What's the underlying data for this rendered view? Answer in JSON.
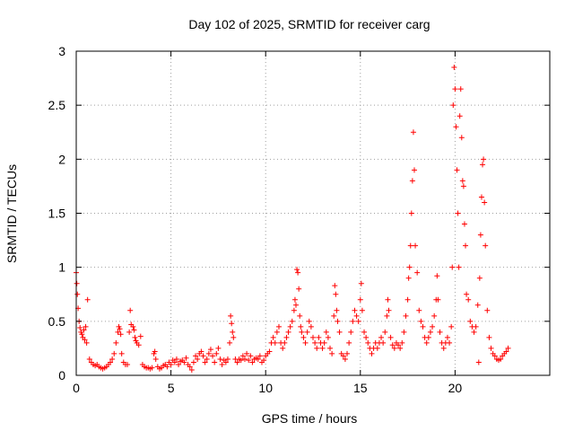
{
  "chart_data": {
    "type": "scatter",
    "title": "Day 102 of 2025, SRMTID for receiver carg",
    "xlabel": "GPS time / hours",
    "ylabel": "SRMTID / TECUs",
    "xlim": [
      0,
      25
    ],
    "ylim": [
      0,
      3
    ],
    "xticks": [
      0,
      5,
      10,
      15,
      20
    ],
    "xtick_labels": [
      "0",
      "5",
      "10",
      "15",
      "20"
    ],
    "yticks": [
      0,
      0.5,
      1,
      1.5,
      2,
      2.5,
      3
    ],
    "ytick_labels": [
      "0",
      "0.5",
      "1",
      "1.5",
      "2",
      "2.5",
      "3"
    ],
    "grid": true,
    "marker": "+",
    "color": "#ff0000",
    "series": [
      {
        "name": "SRMTID",
        "points": [
          [
            0.0,
            0.95
          ],
          [
            0.03,
            0.85
          ],
          [
            0.06,
            0.75
          ],
          [
            0.1,
            0.62
          ],
          [
            0.15,
            0.5
          ],
          [
            0.2,
            0.44
          ],
          [
            0.25,
            0.4
          ],
          [
            0.3,
            0.38
          ],
          [
            0.35,
            0.35
          ],
          [
            0.4,
            0.42
          ],
          [
            0.45,
            0.33
          ],
          [
            0.5,
            0.45
          ],
          [
            0.55,
            0.3
          ],
          [
            0.6,
            0.7
          ],
          [
            0.7,
            0.15
          ],
          [
            0.8,
            0.12
          ],
          [
            0.9,
            0.1
          ],
          [
            1.0,
            0.09
          ],
          [
            1.1,
            0.1
          ],
          [
            1.2,
            0.08
          ],
          [
            1.3,
            0.07
          ],
          [
            1.4,
            0.06
          ],
          [
            1.5,
            0.07
          ],
          [
            1.6,
            0.08
          ],
          [
            1.7,
            0.1
          ],
          [
            1.8,
            0.12
          ],
          [
            1.9,
            0.15
          ],
          [
            2.0,
            0.2
          ],
          [
            2.1,
            0.3
          ],
          [
            2.2,
            0.4
          ],
          [
            2.25,
            0.45
          ],
          [
            2.3,
            0.43
          ],
          [
            2.35,
            0.38
          ],
          [
            2.4,
            0.2
          ],
          [
            2.5,
            0.12
          ],
          [
            2.6,
            0.1
          ],
          [
            2.7,
            0.1
          ],
          [
            2.8,
            0.4
          ],
          [
            2.85,
            0.6
          ],
          [
            2.9,
            0.47
          ],
          [
            3.0,
            0.45
          ],
          [
            3.05,
            0.42
          ],
          [
            3.1,
            0.35
          ],
          [
            3.15,
            0.32
          ],
          [
            3.2,
            0.3
          ],
          [
            3.3,
            0.28
          ],
          [
            3.4,
            0.36
          ],
          [
            3.5,
            0.1
          ],
          [
            3.6,
            0.08
          ],
          [
            3.7,
            0.07
          ],
          [
            3.8,
            0.07
          ],
          [
            3.9,
            0.06
          ],
          [
            4.0,
            0.07
          ],
          [
            4.1,
            0.2
          ],
          [
            4.15,
            0.22
          ],
          [
            4.2,
            0.15
          ],
          [
            4.3,
            0.08
          ],
          [
            4.4,
            0.06
          ],
          [
            4.5,
            0.07
          ],
          [
            4.6,
            0.09
          ],
          [
            4.7,
            0.1
          ],
          [
            4.8,
            0.08
          ],
          [
            4.9,
            0.12
          ],
          [
            5.0,
            0.1
          ],
          [
            5.1,
            0.14
          ],
          [
            5.2,
            0.12
          ],
          [
            5.3,
            0.15
          ],
          [
            5.4,
            0.1
          ],
          [
            5.5,
            0.13
          ],
          [
            5.6,
            0.14
          ],
          [
            5.7,
            0.12
          ],
          [
            5.8,
            0.16
          ],
          [
            5.9,
            0.1
          ],
          [
            6.0,
            0.08
          ],
          [
            6.1,
            0.05
          ],
          [
            6.2,
            0.12
          ],
          [
            6.3,
            0.18
          ],
          [
            6.4,
            0.15
          ],
          [
            6.5,
            0.2
          ],
          [
            6.6,
            0.22
          ],
          [
            6.7,
            0.18
          ],
          [
            6.8,
            0.12
          ],
          [
            6.9,
            0.15
          ],
          [
            7.0,
            0.2
          ],
          [
            7.1,
            0.24
          ],
          [
            7.2,
            0.18
          ],
          [
            7.3,
            0.12
          ],
          [
            7.4,
            0.2
          ],
          [
            7.5,
            0.25
          ],
          [
            7.6,
            0.15
          ],
          [
            7.7,
            0.1
          ],
          [
            7.8,
            0.14
          ],
          [
            7.9,
            0.12
          ],
          [
            8.0,
            0.15
          ],
          [
            8.1,
            0.3
          ],
          [
            8.15,
            0.55
          ],
          [
            8.2,
            0.48
          ],
          [
            8.25,
            0.4
          ],
          [
            8.3,
            0.35
          ],
          [
            8.4,
            0.15
          ],
          [
            8.5,
            0.12
          ],
          [
            8.6,
            0.15
          ],
          [
            8.7,
            0.14
          ],
          [
            8.8,
            0.18
          ],
          [
            8.9,
            0.15
          ],
          [
            9.0,
            0.2
          ],
          [
            9.1,
            0.14
          ],
          [
            9.2,
            0.18
          ],
          [
            9.3,
            0.12
          ],
          [
            9.4,
            0.15
          ],
          [
            9.5,
            0.16
          ],
          [
            9.6,
            0.15
          ],
          [
            9.7,
            0.18
          ],
          [
            9.8,
            0.12
          ],
          [
            9.9,
            0.14
          ],
          [
            10.0,
            0.18
          ],
          [
            10.1,
            0.2
          ],
          [
            10.2,
            0.22
          ],
          [
            10.3,
            0.3
          ],
          [
            10.4,
            0.35
          ],
          [
            10.5,
            0.3
          ],
          [
            10.6,
            0.4
          ],
          [
            10.7,
            0.45
          ],
          [
            10.8,
            0.3
          ],
          [
            10.9,
            0.25
          ],
          [
            11.0,
            0.3
          ],
          [
            11.1,
            0.35
          ],
          [
            11.2,
            0.4
          ],
          [
            11.3,
            0.45
          ],
          [
            11.4,
            0.5
          ],
          [
            11.5,
            0.6
          ],
          [
            11.55,
            0.7
          ],
          [
            11.6,
            0.65
          ],
          [
            11.65,
            0.98
          ],
          [
            11.7,
            0.95
          ],
          [
            11.75,
            0.8
          ],
          [
            11.8,
            0.55
          ],
          [
            11.85,
            0.45
          ],
          [
            11.9,
            0.4
          ],
          [
            12.0,
            0.35
          ],
          [
            12.1,
            0.3
          ],
          [
            12.2,
            0.4
          ],
          [
            12.3,
            0.5
          ],
          [
            12.4,
            0.45
          ],
          [
            12.5,
            0.35
          ],
          [
            12.6,
            0.3
          ],
          [
            12.7,
            0.25
          ],
          [
            12.8,
            0.35
          ],
          [
            12.9,
            0.3
          ],
          [
            13.0,
            0.25
          ],
          [
            13.1,
            0.3
          ],
          [
            13.2,
            0.4
          ],
          [
            13.3,
            0.35
          ],
          [
            13.4,
            0.25
          ],
          [
            13.5,
            0.2
          ],
          [
            13.6,
            0.55
          ],
          [
            13.65,
            0.83
          ],
          [
            13.7,
            0.75
          ],
          [
            13.75,
            0.6
          ],
          [
            13.8,
            0.5
          ],
          [
            13.9,
            0.4
          ],
          [
            14.0,
            0.2
          ],
          [
            14.1,
            0.18
          ],
          [
            14.2,
            0.15
          ],
          [
            14.3,
            0.2
          ],
          [
            14.4,
            0.3
          ],
          [
            14.5,
            0.4
          ],
          [
            14.6,
            0.5
          ],
          [
            14.7,
            0.6
          ],
          [
            14.8,
            0.55
          ],
          [
            14.9,
            0.5
          ],
          [
            15.0,
            0.7
          ],
          [
            15.05,
            0.85
          ],
          [
            15.1,
            0.6
          ],
          [
            15.2,
            0.4
          ],
          [
            15.3,
            0.35
          ],
          [
            15.4,
            0.3
          ],
          [
            15.5,
            0.25
          ],
          [
            15.6,
            0.2
          ],
          [
            15.7,
            0.25
          ],
          [
            15.8,
            0.3
          ],
          [
            15.9,
            0.25
          ],
          [
            16.0,
            0.3
          ],
          [
            16.1,
            0.35
          ],
          [
            16.2,
            0.3
          ],
          [
            16.3,
            0.4
          ],
          [
            16.4,
            0.55
          ],
          [
            16.45,
            0.7
          ],
          [
            16.5,
            0.6
          ],
          [
            16.6,
            0.35
          ],
          [
            16.7,
            0.28
          ],
          [
            16.8,
            0.25
          ],
          [
            16.9,
            0.3
          ],
          [
            17.0,
            0.28
          ],
          [
            17.1,
            0.25
          ],
          [
            17.2,
            0.3
          ],
          [
            17.3,
            0.4
          ],
          [
            17.4,
            0.55
          ],
          [
            17.5,
            0.7
          ],
          [
            17.55,
            0.9
          ],
          [
            17.6,
            1.0
          ],
          [
            17.65,
            1.2
          ],
          [
            17.7,
            1.5
          ],
          [
            17.75,
            1.8
          ],
          [
            17.8,
            2.25
          ],
          [
            17.85,
            1.9
          ],
          [
            17.9,
            1.2
          ],
          [
            18.0,
            0.95
          ],
          [
            18.1,
            0.6
          ],
          [
            18.2,
            0.5
          ],
          [
            18.3,
            0.45
          ],
          [
            18.4,
            0.35
          ],
          [
            18.5,
            0.3
          ],
          [
            18.6,
            0.35
          ],
          [
            18.7,
            0.4
          ],
          [
            18.8,
            0.45
          ],
          [
            18.9,
            0.55
          ],
          [
            19.0,
            0.7
          ],
          [
            19.05,
            0.92
          ],
          [
            19.1,
            0.7
          ],
          [
            19.2,
            0.4
          ],
          [
            19.3,
            0.3
          ],
          [
            19.4,
            0.25
          ],
          [
            19.5,
            0.3
          ],
          [
            19.6,
            0.35
          ],
          [
            19.7,
            0.3
          ],
          [
            19.8,
            0.45
          ],
          [
            19.85,
            1.0
          ],
          [
            19.9,
            2.5
          ],
          [
            19.95,
            2.85
          ],
          [
            20.0,
            2.65
          ],
          [
            20.05,
            2.3
          ],
          [
            20.1,
            1.9
          ],
          [
            20.15,
            1.5
          ],
          [
            20.2,
            1.0
          ],
          [
            20.25,
            2.4
          ],
          [
            20.3,
            2.65
          ],
          [
            20.35,
            2.2
          ],
          [
            20.4,
            1.8
          ],
          [
            20.45,
            1.75
          ],
          [
            20.5,
            1.4
          ],
          [
            20.55,
            1.2
          ],
          [
            20.6,
            0.75
          ],
          [
            20.7,
            0.7
          ],
          [
            20.8,
            0.5
          ],
          [
            20.9,
            0.45
          ],
          [
            21.0,
            0.4
          ],
          [
            21.1,
            0.45
          ],
          [
            21.2,
            0.65
          ],
          [
            21.25,
            0.12
          ],
          [
            21.3,
            0.9
          ],
          [
            21.35,
            1.3
          ],
          [
            21.4,
            1.65
          ],
          [
            21.45,
            1.95
          ],
          [
            21.5,
            2.0
          ],
          [
            21.55,
            1.6
          ],
          [
            21.6,
            1.2
          ],
          [
            21.7,
            0.6
          ],
          [
            21.8,
            0.35
          ],
          [
            21.9,
            0.25
          ],
          [
            22.0,
            0.2
          ],
          [
            22.1,
            0.18
          ],
          [
            22.2,
            0.15
          ],
          [
            22.3,
            0.14
          ],
          [
            22.4,
            0.15
          ],
          [
            22.5,
            0.18
          ],
          [
            22.6,
            0.2
          ],
          [
            22.7,
            0.22
          ],
          [
            22.8,
            0.25
          ]
        ]
      }
    ]
  }
}
